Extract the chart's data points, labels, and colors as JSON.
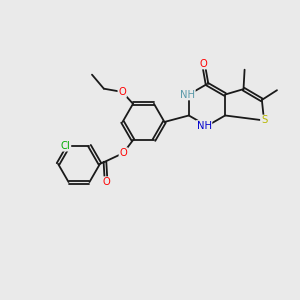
{
  "background_color": "#eaeaea",
  "bond_color": "#1a1a1a",
  "figsize": [
    3.0,
    3.0
  ],
  "dpi": 100,
  "atom_colors": {
    "O": "#ff0000",
    "N": "#0000cd",
    "S": "#b8b800",
    "Cl": "#00aa00",
    "C": "#1a1a1a",
    "H": "#5a9aaa"
  },
  "font_size": 7.2,
  "lw": 1.3
}
